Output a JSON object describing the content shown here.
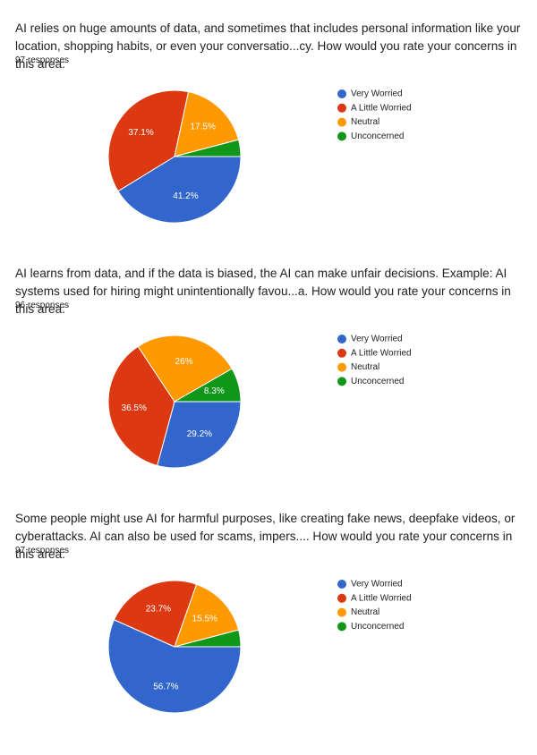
{
  "chart_data": [
    {
      "type": "pie",
      "title": "AI relies on huge amounts of data, and sometimes that includes personal information like your location, shopping habits, or even your conversatio...cy.  How would you rate your concerns in this area:",
      "subtitle": "97 responses",
      "categories": [
        "Very Worried",
        "A Little Worried",
        "Neutral",
        "Unconcerned"
      ],
      "values": [
        41.2,
        37.1,
        17.5,
        4.1
      ],
      "value_labels": [
        "41.2%",
        "37.1%",
        "17.5%",
        null
      ],
      "colors": [
        "#3366cc",
        "#dc3912",
        "#ff9900",
        "#109618"
      ],
      "legend": "right"
    },
    {
      "type": "pie",
      "title": "AI learns from data, and if the data is biased, the AI can make unfair decisions.  Example:  AI systems used for hiring might unintentionally favou...a.  How would you rate your concerns in this area:",
      "subtitle": "96 responses",
      "categories": [
        "Very Worried",
        "A Little Worried",
        "Neutral",
        "Unconcerned"
      ],
      "values": [
        29.2,
        36.5,
        26,
        8.3
      ],
      "value_labels": [
        "29.2%",
        "36.5%",
        "26%",
        "8.3%"
      ],
      "colors": [
        "#3366cc",
        "#dc3912",
        "#ff9900",
        "#109618"
      ],
      "legend": "right"
    },
    {
      "type": "pie",
      "title": "Some people might use AI for harmful purposes, like creating fake news, deepfake videos, or cyberattacks. AI can also be used for scams, impers....   How would you rate your concerns in this area:",
      "subtitle": "97 responses",
      "categories": [
        "Very Worried",
        "A Little Worried",
        "Neutral",
        "Unconcerned"
      ],
      "values": [
        56.7,
        23.7,
        15.5,
        4.1
      ],
      "value_labels": [
        "56.7%",
        "23.7%",
        "15.5%",
        null
      ],
      "colors": [
        "#3366cc",
        "#dc3912",
        "#ff9900",
        "#109618"
      ],
      "legend": "right"
    }
  ]
}
